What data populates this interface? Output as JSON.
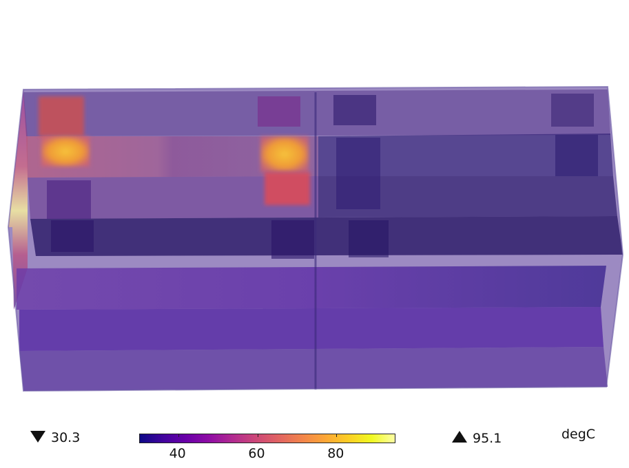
{
  "scene": {
    "colormap": [
      "#0d0887",
      "#41049d",
      "#6a00a8",
      "#8f0da4",
      "#b12a90",
      "#cc4778",
      "#e16462",
      "#f2844b",
      "#fca636",
      "#fcce25",
      "#f0f921",
      "#fcffa4"
    ],
    "outline_color": "#6a5aa5"
  },
  "legend": {
    "min_value": "30.3",
    "max_value": "95.1",
    "unit": "degC",
    "range": [
      30.3,
      95.1
    ],
    "ticks": [
      "40",
      "60",
      "80"
    ]
  }
}
